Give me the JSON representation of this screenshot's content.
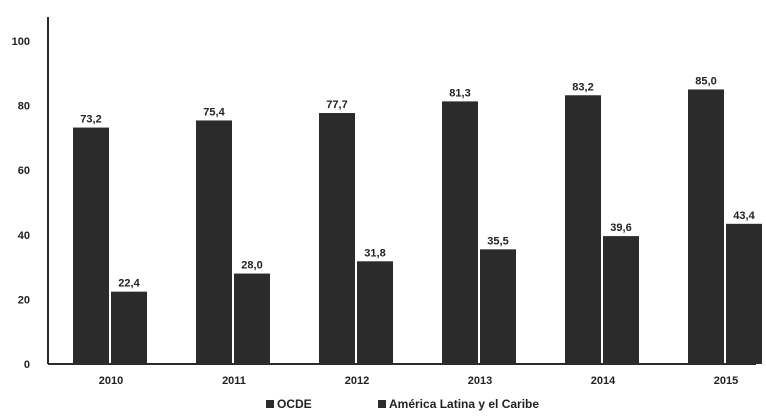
{
  "chart_data": {
    "type": "bar",
    "categories": [
      "2010",
      "2011",
      "2012",
      "2013",
      "2014",
      "2015"
    ],
    "series": [
      {
        "name": "OCDE",
        "values": [
          73.2,
          75.4,
          77.7,
          81.3,
          83.2,
          85.0
        ],
        "labels": [
          "73,2",
          "75,4",
          "77,7",
          "81,3",
          "83,2",
          "85,0"
        ],
        "color": "#2b2b2b"
      },
      {
        "name": "América Latina y el Caribe",
        "values": [
          22.4,
          28.0,
          31.8,
          35.5,
          39.6,
          43.4
        ],
        "labels": [
          "22,4",
          "28,0",
          "31,8",
          "35,5",
          "39,6",
          "43,4"
        ],
        "color": "#2b2b2b"
      }
    ],
    "yticks": [
      "0",
      "20",
      "40",
      "60",
      "80",
      "100"
    ],
    "ylim": [
      0,
      100
    ],
    "grid": false,
    "legend_position": "bottom"
  }
}
